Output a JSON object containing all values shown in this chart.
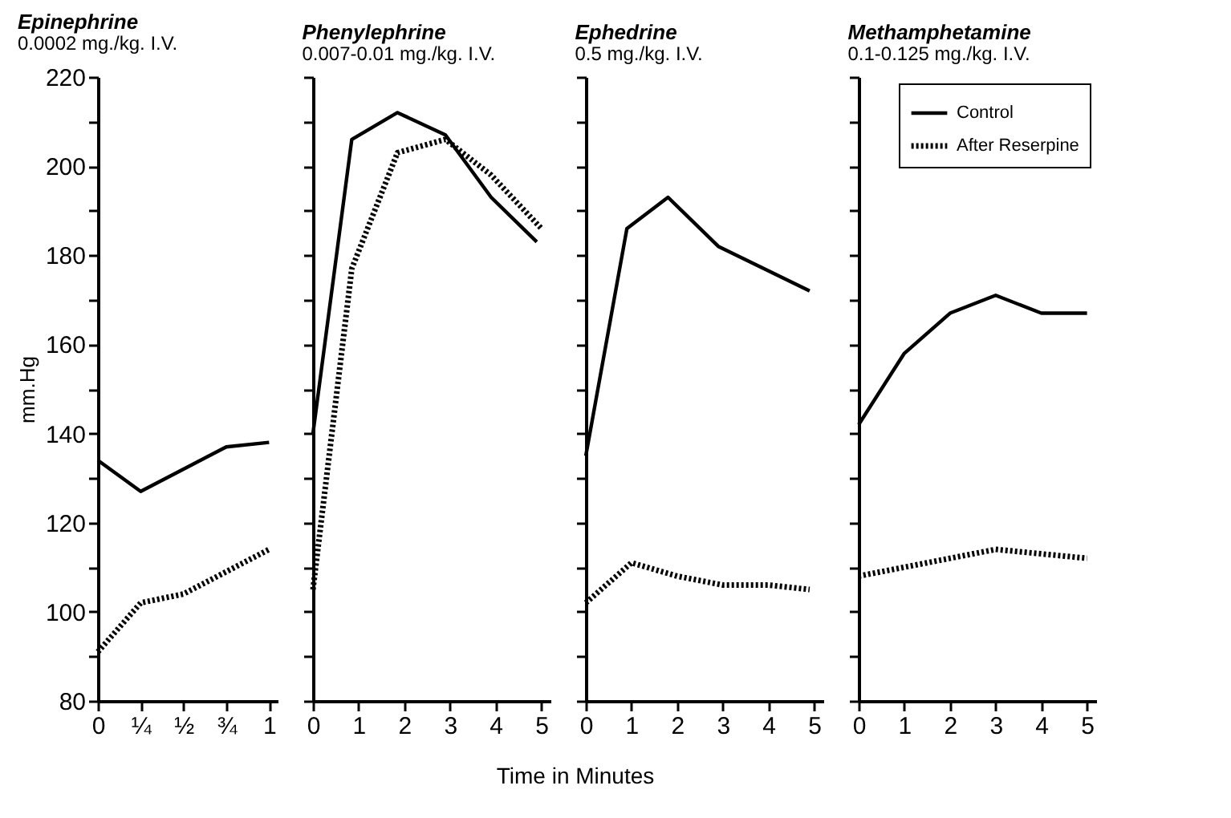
{
  "chart_data": [
    {
      "type": "line",
      "title": "Epinephrine",
      "subtitle": "0.0002 mg./kg. I.V.",
      "ylabel": "mm.Hg",
      "xlim": [
        0,
        1.05
      ],
      "xticks": [
        0,
        {
          "value": 0.25,
          "label": "¼"
        },
        {
          "value": 0.5,
          "label": "½"
        },
        {
          "value": 0.75,
          "label": "¾"
        },
        1
      ],
      "ylim": [
        80,
        220
      ],
      "yticks": [
        80,
        {
          "value": 90,
          "label": null
        },
        100,
        {
          "value": 110,
          "label": null
        },
        120,
        {
          "value": 130,
          "label": null
        },
        140,
        {
          "value": 150,
          "label": null
        },
        160,
        {
          "value": 170,
          "label": null
        },
        180,
        {
          "value": 190,
          "label": null
        },
        200,
        {
          "value": 210,
          "label": null
        },
        220
      ],
      "grid": false,
      "legend": false,
      "marker": "none",
      "series": [
        {
          "color": "#000000",
          "line_style": "solid",
          "x": [
            0,
            0.25,
            0.5,
            0.75,
            1
          ],
          "values": [
            134,
            127,
            132,
            137,
            138
          ]
        },
        {
          "color": "#000000",
          "line_style": "dotted",
          "x": [
            0,
            0.25,
            0.5,
            0.75,
            1
          ],
          "values": [
            91,
            102,
            104,
            109,
            114
          ]
        }
      ]
    },
    {
      "type": "line",
      "title": "Phenylephrine",
      "subtitle": "0.007-0.01 mg./kg. I.V.",
      "xlabel": "Time in Minutes",
      "xlim": [
        0,
        5.2
      ],
      "xticks": [
        0,
        1,
        2,
        3,
        4,
        5
      ],
      "ylim": [
        80,
        220
      ],
      "yticks": [
        80,
        90,
        100,
        110,
        120,
        130,
        140,
        150,
        160,
        170,
        180,
        190,
        200,
        210,
        220
      ],
      "tick_labels": "x",
      "grid": false,
      "legend": false,
      "marker": "none",
      "series": [
        {
          "color": "#000000",
          "line_style": "solid",
          "x": [
            0,
            0.85,
            1.85,
            2.9,
            3.9,
            4.9
          ],
          "values": [
            140,
            206,
            212,
            207,
            193,
            183
          ]
        },
        {
          "color": "#000000",
          "line_style": "dotted",
          "x": [
            0,
            0.85,
            1.85,
            2.9,
            3.9,
            5
          ],
          "values": [
            105,
            177,
            203,
            206,
            198,
            186
          ]
        }
      ]
    },
    {
      "type": "line",
      "title": "Ephedrine",
      "subtitle": "0.5 mg./kg. I.V.",
      "xlim": [
        0,
        5.2
      ],
      "xticks": [
        0,
        1,
        2,
        3,
        4,
        5
      ],
      "ylim": [
        80,
        220
      ],
      "yticks": [
        80,
        90,
        100,
        110,
        120,
        130,
        140,
        150,
        160,
        170,
        180,
        190,
        200,
        210,
        220
      ],
      "tick_labels": "x",
      "grid": false,
      "legend": false,
      "marker": "none",
      "series": [
        {
          "color": "#000000",
          "line_style": "solid",
          "x": [
            0,
            0.9,
            1.8,
            2.9,
            4.9
          ],
          "values": [
            135,
            186,
            193,
            182,
            172
          ]
        },
        {
          "color": "#000000",
          "line_style": "dotted",
          "x": [
            0,
            1,
            2,
            3,
            4,
            4.9
          ],
          "values": [
            102,
            111,
            108,
            106,
            106,
            105
          ]
        }
      ]
    },
    {
      "type": "line",
      "title": "Methamphetamine",
      "subtitle": "0.1-0.125 mg./kg. I.V.",
      "xlim": [
        0,
        5.2
      ],
      "xticks": [
        0,
        1,
        2,
        3,
        4,
        5
      ],
      "ylim": [
        80,
        220
      ],
      "yticks": [
        80,
        90,
        100,
        110,
        120,
        130,
        140,
        150,
        160,
        170,
        180,
        190,
        200,
        210,
        220
      ],
      "tick_labels": "x",
      "grid": false,
      "legend": "top right",
      "marker": "none",
      "series": [
        {
          "name": "Control",
          "color": "#000000",
          "line_style": "solid",
          "x": [
            0,
            1,
            2,
            3,
            4,
            5
          ],
          "values": [
            142,
            158,
            167,
            171,
            167,
            167
          ]
        },
        {
          "name": "After Reserpine",
          "color": "#000000",
          "line_style": "dotted",
          "x": [
            0,
            1,
            2,
            3,
            4,
            5
          ],
          "values": [
            108,
            110,
            112,
            114,
            113,
            112
          ]
        }
      ]
    }
  ]
}
